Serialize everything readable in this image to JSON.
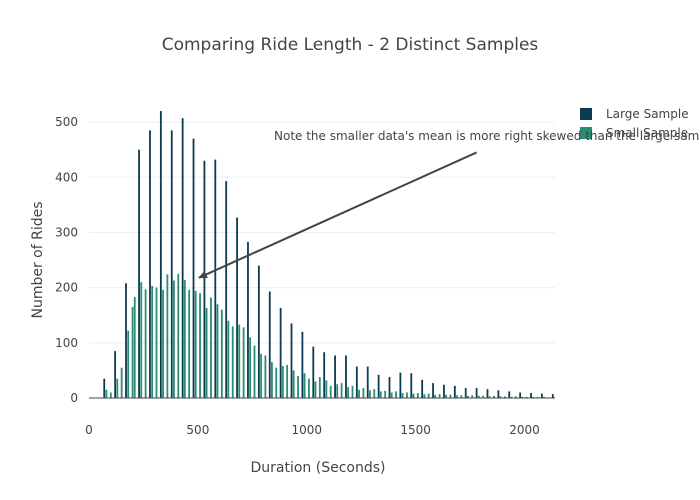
{
  "chart_data": {
    "type": "bar",
    "title": "Comparing Ride Length - 2 Distinct Samples",
    "xlabel": "Duration (Seconds)",
    "ylabel": "Number of Rides",
    "xlim": [
      0,
      2140
    ],
    "ylim": [
      0,
      540
    ],
    "xticks": [
      0,
      500,
      1000,
      1500,
      2000
    ],
    "yticks": [
      0,
      100,
      200,
      300,
      400,
      500
    ],
    "grid": true,
    "legend_position": "top-right",
    "series": [
      {
        "name": "Large Sample",
        "color": "#0b3b4f",
        "x": [
          70,
          120,
          170,
          230,
          280,
          330,
          380,
          430,
          480,
          530,
          580,
          630,
          680,
          730,
          780,
          830,
          880,
          930,
          980,
          1030,
          1080,
          1130,
          1180,
          1230,
          1280,
          1330,
          1380,
          1430,
          1480,
          1530,
          1580,
          1630,
          1680,
          1730,
          1780,
          1830,
          1880,
          1930,
          1980,
          2030,
          2080,
          2130
        ],
        "values": [
          35,
          85,
          208,
          450,
          485,
          520,
          485,
          507,
          470,
          430,
          432,
          393,
          327,
          283,
          240,
          193,
          163,
          135,
          120,
          93,
          83,
          77,
          77,
          57,
          57,
          42,
          38,
          46,
          45,
          33,
          27,
          24,
          22,
          18,
          18,
          16,
          14,
          12,
          10,
          9,
          8,
          7
        ]
      },
      {
        "name": "Small Sample",
        "color": "#2a8c74",
        "x": [
          80,
          100,
          130,
          150,
          180,
          200,
          210,
          240,
          260,
          290,
          310,
          340,
          360,
          390,
          410,
          440,
          460,
          490,
          510,
          540,
          560,
          590,
          610,
          640,
          660,
          690,
          710,
          740,
          760,
          790,
          810,
          840,
          860,
          890,
          910,
          940,
          960,
          990,
          1010,
          1040,
          1060,
          1090,
          1110,
          1140,
          1160,
          1190,
          1210,
          1240,
          1260,
          1290,
          1310,
          1340,
          1360,
          1390,
          1410,
          1440,
          1460,
          1490,
          1510,
          1540,
          1560,
          1590,
          1610,
          1640,
          1660,
          1690,
          1710,
          1740,
          1760,
          1790,
          1810,
          1840,
          1860,
          1890,
          1910,
          1940,
          1960,
          1990,
          2010,
          2040,
          2060,
          2090,
          2110
        ],
        "values": [
          15,
          10,
          35,
          55,
          122,
          165,
          183,
          210,
          197,
          203,
          200,
          196,
          224,
          213,
          225,
          214,
          196,
          194,
          190,
          163,
          182,
          170,
          160,
          140,
          130,
          133,
          128,
          110,
          95,
          80,
          77,
          65,
          55,
          58,
          60,
          50,
          40,
          45,
          35,
          30,
          38,
          32,
          22,
          25,
          27,
          20,
          22,
          15,
          18,
          14,
          16,
          12,
          13,
          10,
          12,
          9,
          10,
          8,
          9,
          7,
          8,
          6,
          7,
          6,
          6,
          5,
          5,
          4,
          5,
          4,
          4,
          3,
          4,
          3,
          3,
          2,
          3,
          2,
          2,
          2,
          2,
          2,
          1
        ]
      }
    ],
    "annotations": [
      {
        "text": "Note the smaller data's mean is more right skewed than the large sample's mean",
        "arrow_to": [
          505,
          218
        ],
        "arrow_from": [
          1780,
          445
        ]
      }
    ]
  }
}
